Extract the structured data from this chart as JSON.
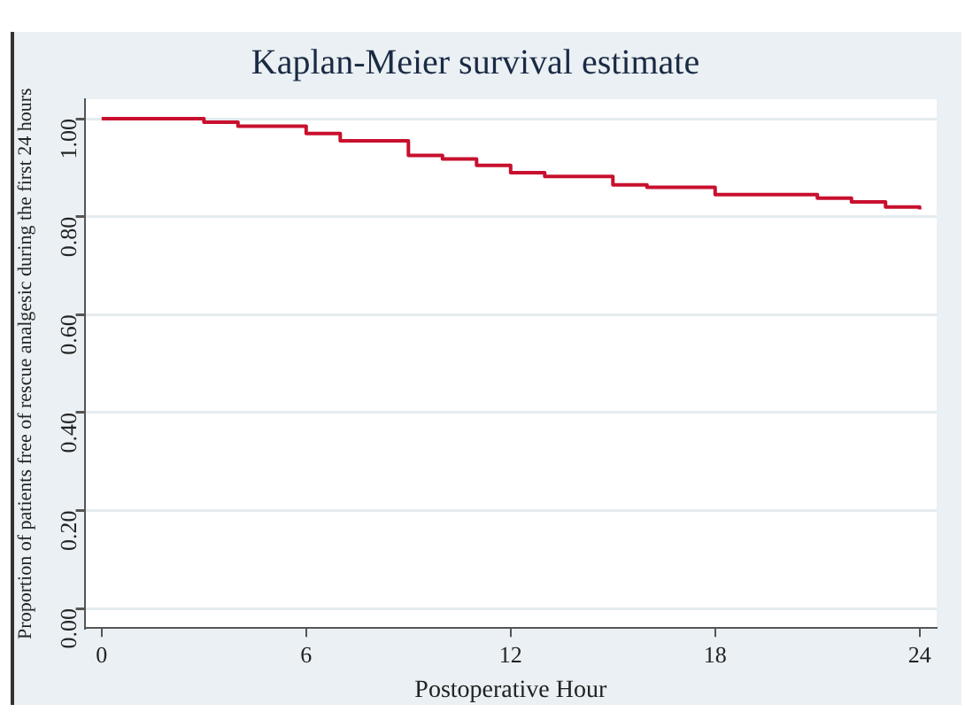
{
  "chart_data": {
    "type": "step",
    "title": "Kaplan-Meier survival estimate",
    "xlabel": "Postoperative Hour",
    "ylabel": "Proportion of patients free of rescue analgesic during the first 24 hours",
    "series": [
      {
        "color": "#c8102e",
        "x": [
          0,
          3,
          4,
          6,
          7,
          9,
          10,
          11,
          12,
          13,
          15,
          16,
          18,
          21,
          22,
          23,
          24
        ],
        "values": [
          1.0,
          0.993,
          0.985,
          0.97,
          0.955,
          0.925,
          0.918,
          0.905,
          0.89,
          0.882,
          0.865,
          0.86,
          0.845,
          0.838,
          0.83,
          0.82,
          0.815
        ]
      }
    ],
    "xlim": [
      -0.5,
      24.5
    ],
    "xticks": [
      0,
      6,
      12,
      18,
      24
    ],
    "ylim": [
      -0.04,
      1.04
    ],
    "yticks": [
      {
        "value": 0,
        "label": "0.00"
      },
      {
        "value": 0.2,
        "label": "0.20"
      },
      {
        "value": 0.4,
        "label": "0.40"
      },
      {
        "value": 0.6,
        "label": "0.60"
      },
      {
        "value": 0.8,
        "label": "0.80"
      },
      {
        "value": 1,
        "label": "1.00"
      }
    ],
    "grid": "y",
    "legend": false
  }
}
